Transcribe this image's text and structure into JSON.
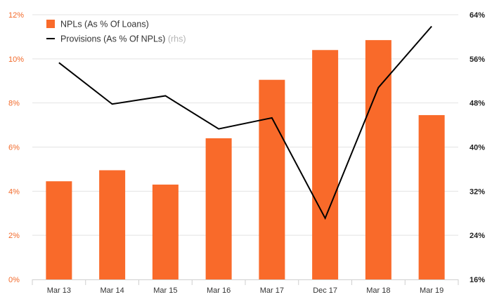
{
  "chart_data": {
    "type": "bar",
    "categories": [
      "Mar 13",
      "Mar 14",
      "Mar 15",
      "Mar 16",
      "Mar 17",
      "Dec 17",
      "Mar 18",
      "Mar 19"
    ],
    "series": [
      {
        "name": "NPLs (As % Of Loans)",
        "type": "bar",
        "axis": "left",
        "color": "#f96a2a",
        "values": [
          4.45,
          4.95,
          4.3,
          6.4,
          9.05,
          10.4,
          10.85,
          7.45
        ]
      },
      {
        "name": "Provisions (As % Of NPLs)",
        "axis_note": "(rhs)",
        "type": "line",
        "axis": "right",
        "color": "#000000",
        "values": [
          55.3,
          47.8,
          49.3,
          43.3,
          45.3,
          27.1,
          50.8,
          61.9
        ]
      }
    ],
    "left_axis": {
      "ylim": [
        0,
        12
      ],
      "ticks": [
        0,
        2,
        4,
        6,
        8,
        10,
        12
      ],
      "tick_labels": [
        "0%",
        "2%",
        "4%",
        "6%",
        "8%",
        "10%",
        "12%"
      ],
      "color": "#f26a2b"
    },
    "right_axis": {
      "ylim": [
        16,
        64
      ],
      "ticks": [
        16,
        24,
        32,
        40,
        48,
        56,
        64
      ],
      "tick_labels": [
        "16%",
        "24%",
        "32%",
        "40%",
        "48%",
        "56%",
        "64%"
      ]
    },
    "grid": true,
    "legend_position": "top-left"
  }
}
